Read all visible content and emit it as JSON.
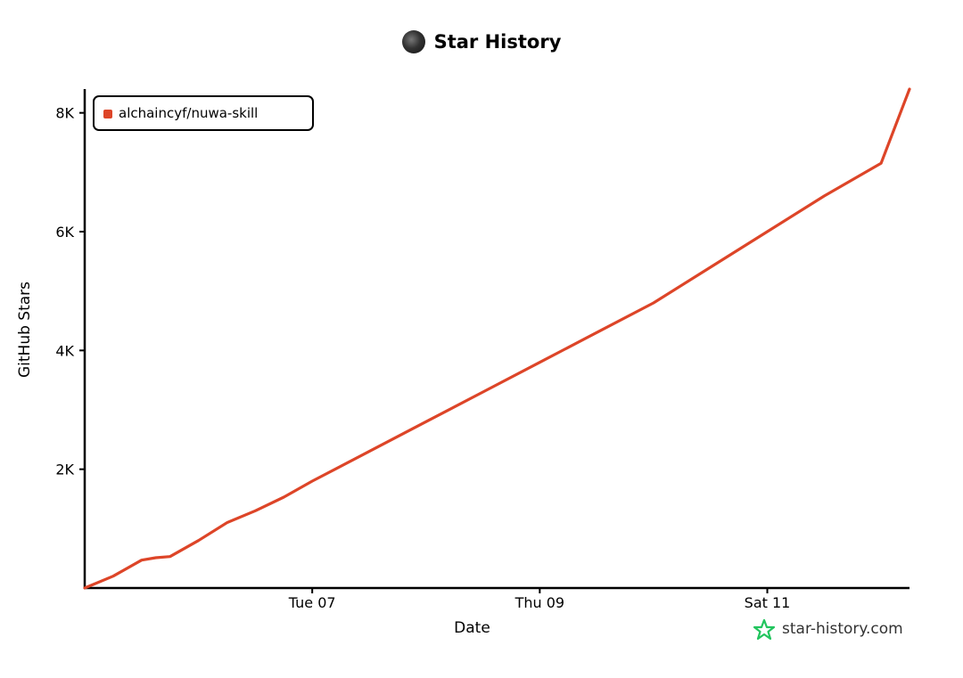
{
  "chart_data": {
    "type": "line",
    "title": "Star History",
    "xlabel": "Date",
    "ylabel": "GitHub Stars",
    "x_ticks": [
      "Tue 07",
      "Thu 09",
      "Sat 11"
    ],
    "y_ticks": [
      "2K",
      "4K",
      "6K",
      "8K"
    ],
    "ylim": [
      0,
      8400
    ],
    "xlim": [
      "2026-04-05T00:00",
      "2026-04-12T06:00"
    ],
    "grid": false,
    "legend_position": "top-left",
    "series": [
      {
        "name": "alchaincyf/nuwa-skill",
        "color": "#dd4528",
        "x": [
          "2026-04-05T00:00",
          "2026-04-05T06:00",
          "2026-04-05T12:00",
          "2026-04-05T15:00",
          "2026-04-05T18:00",
          "2026-04-06T00:00",
          "2026-04-06T06:00",
          "2026-04-06T12:00",
          "2026-04-06T18:00",
          "2026-04-07T00:00",
          "2026-04-07T12:00",
          "2026-04-08T00:00",
          "2026-04-08T12:00",
          "2026-04-09T00:00",
          "2026-04-09T12:00",
          "2026-04-10T00:00",
          "2026-04-10T12:00",
          "2026-04-11T00:00",
          "2026-04-11T12:00",
          "2026-04-12T00:00",
          "2026-04-12T06:00"
        ],
        "values": [
          0,
          200,
          470,
          510,
          530,
          800,
          1100,
          1300,
          1530,
          1800,
          2300,
          2800,
          3300,
          3800,
          4300,
          4800,
          5400,
          6000,
          6600,
          7150,
          8400
        ]
      }
    ]
  },
  "legend": {
    "label": "alchaincyf/nuwa-skill"
  },
  "watermark": {
    "text": "star-history.com"
  },
  "colors": {
    "series": "#dd4528",
    "watermark_star": "#22c55e"
  },
  "icons": {
    "avatar": "avatar",
    "watermark": "star-icon"
  }
}
